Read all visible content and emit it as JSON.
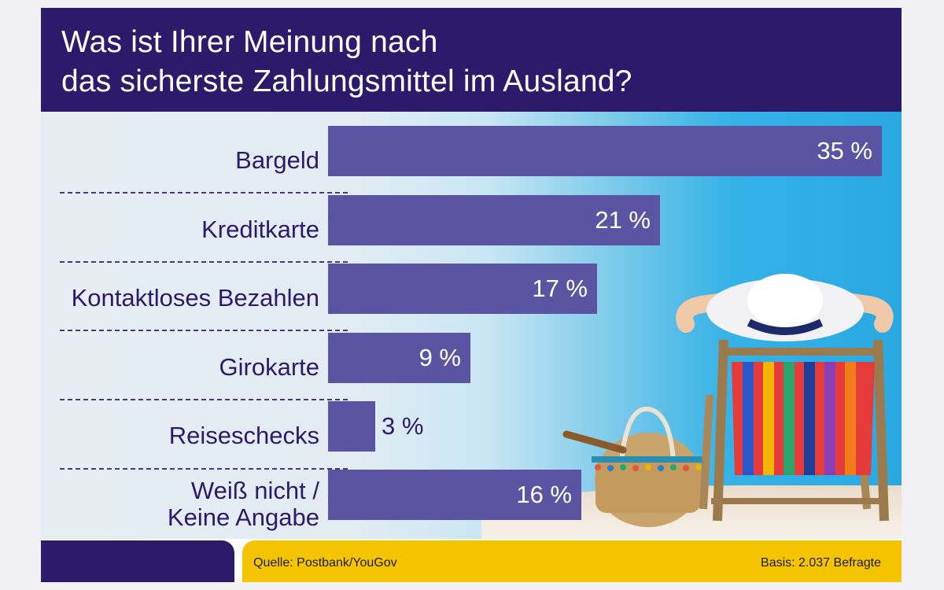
{
  "title": {
    "line1": "Was ist Ihrer Meinung nach",
    "line2": "das sicherste Zahlungsmittel im Ausland?"
  },
  "chart_data": {
    "type": "bar",
    "orientation": "horizontal",
    "categories": [
      "Bargeld",
      "Kreditkarte",
      "Kontaktloses Bezahlen",
      "Girokarte",
      "Reiseschecks",
      "Weiß nicht / Keine Angabe"
    ],
    "category_lines": [
      [
        "Bargeld"
      ],
      [
        "Kreditkarte"
      ],
      [
        "Kontaktloses Bezahlen"
      ],
      [
        "Girokarte"
      ],
      [
        "Reiseschecks"
      ],
      [
        "Weiß nicht /",
        "Keine Angabe"
      ]
    ],
    "values": [
      35,
      21,
      17,
      9,
      3,
      16
    ],
    "value_labels": [
      "35 %",
      "21 %",
      "17 %",
      "9 %",
      "3 %",
      "16 %"
    ],
    "xlim": [
      0,
      35
    ],
    "grid": false,
    "bar_color": "#5a54a2"
  },
  "footer": {
    "source": "Quelle: Postbank/YouGov",
    "basis": "Basis: 2.037 Befragte"
  },
  "colors": {
    "header": "#2e1a6b",
    "accent_yellow": "#f5c400",
    "label_text": "#2e1a6b"
  }
}
